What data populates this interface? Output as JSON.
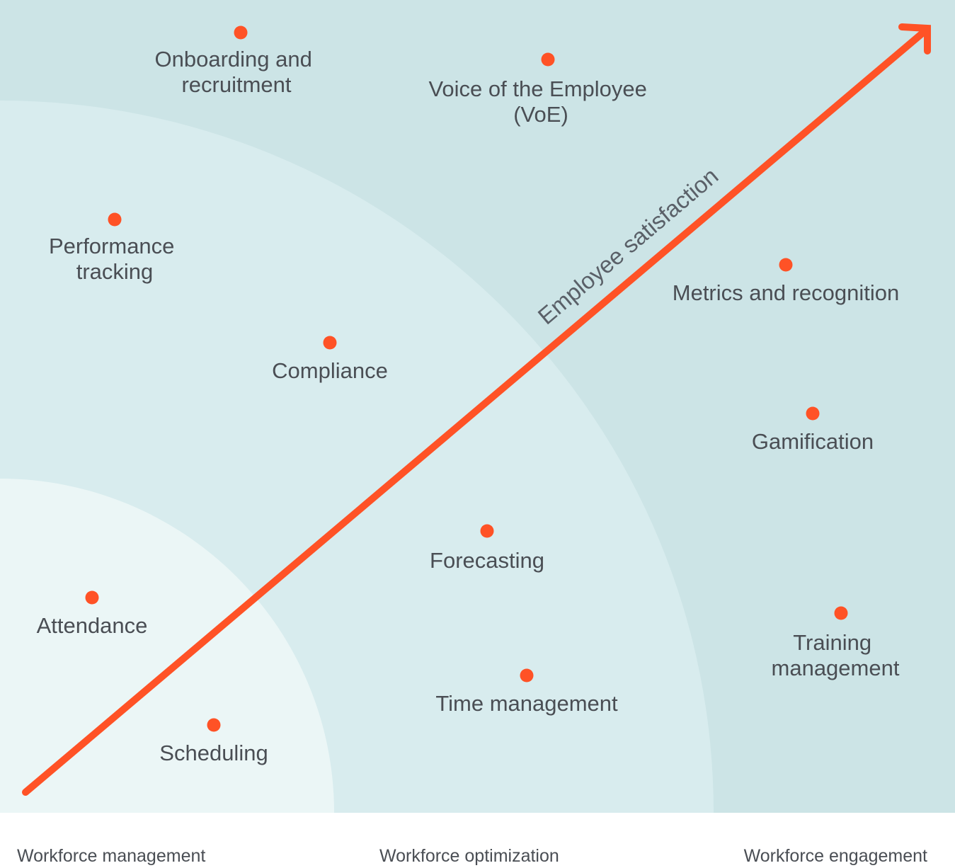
{
  "axis": {
    "label": "Employee satisfaction"
  },
  "categories": {
    "management": "Workforce management",
    "optimization": "Workforce optimization",
    "engagement": "Workforce engagement"
  },
  "points": {
    "onboarding": {
      "line1": "Onboarding and",
      "line2": "recruitment"
    },
    "voe": {
      "line1": "Voice of the Employee",
      "line2": "(VoE)"
    },
    "performance": {
      "line1": "Performance",
      "line2": "tracking"
    },
    "metrics": {
      "line1": "Metrics and recognition"
    },
    "compliance": {
      "line1": "Compliance"
    },
    "gamification": {
      "line1": "Gamification"
    },
    "forecasting": {
      "line1": "Forecasting"
    },
    "attendance": {
      "line1": "Attendance"
    },
    "training": {
      "line1": "Training",
      "line2": "management"
    },
    "time_management": {
      "line1": "Time management"
    },
    "scheduling": {
      "line1": "Scheduling"
    }
  },
  "colors": {
    "outer_zone": "#cce4e6",
    "middle_zone": "#d8ecee",
    "inner_zone": "#ebf6f6",
    "accent": "#ff5226",
    "label_text": "#4a4e54"
  }
}
